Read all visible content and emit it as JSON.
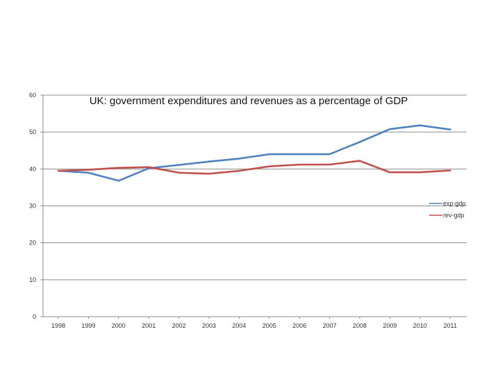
{
  "chart_data": {
    "type": "line",
    "title": "UK: government expenditures and revenues as a percentage of GDP",
    "xlabel": "",
    "ylabel": "",
    "categories": [
      "1998",
      "1999",
      "2000",
      "2001",
      "2002",
      "2003",
      "2004",
      "2005",
      "2006",
      "2007",
      "2008",
      "2009",
      "2010",
      "2011"
    ],
    "series": [
      {
        "name": "exp-gdp",
        "color": "#4f81bd",
        "values": [
          39.5,
          39.0,
          36.8,
          40.2,
          41.1,
          42.0,
          42.8,
          44.0,
          44.0,
          44.0,
          47.3,
          50.8,
          51.8,
          50.7
        ]
      },
      {
        "name": "rev-gdp",
        "color": "#c0504d",
        "values": [
          39.5,
          39.8,
          40.3,
          40.5,
          39.0,
          38.7,
          39.5,
          40.7,
          41.2,
          41.2,
          42.2,
          39.1,
          39.1,
          39.6
        ]
      }
    ],
    "y_ticks": [
      "0",
      "10",
      "20",
      "30",
      "40",
      "50",
      "60"
    ],
    "ylim": [
      0,
      60
    ],
    "grid": true,
    "legend_position": "right"
  }
}
